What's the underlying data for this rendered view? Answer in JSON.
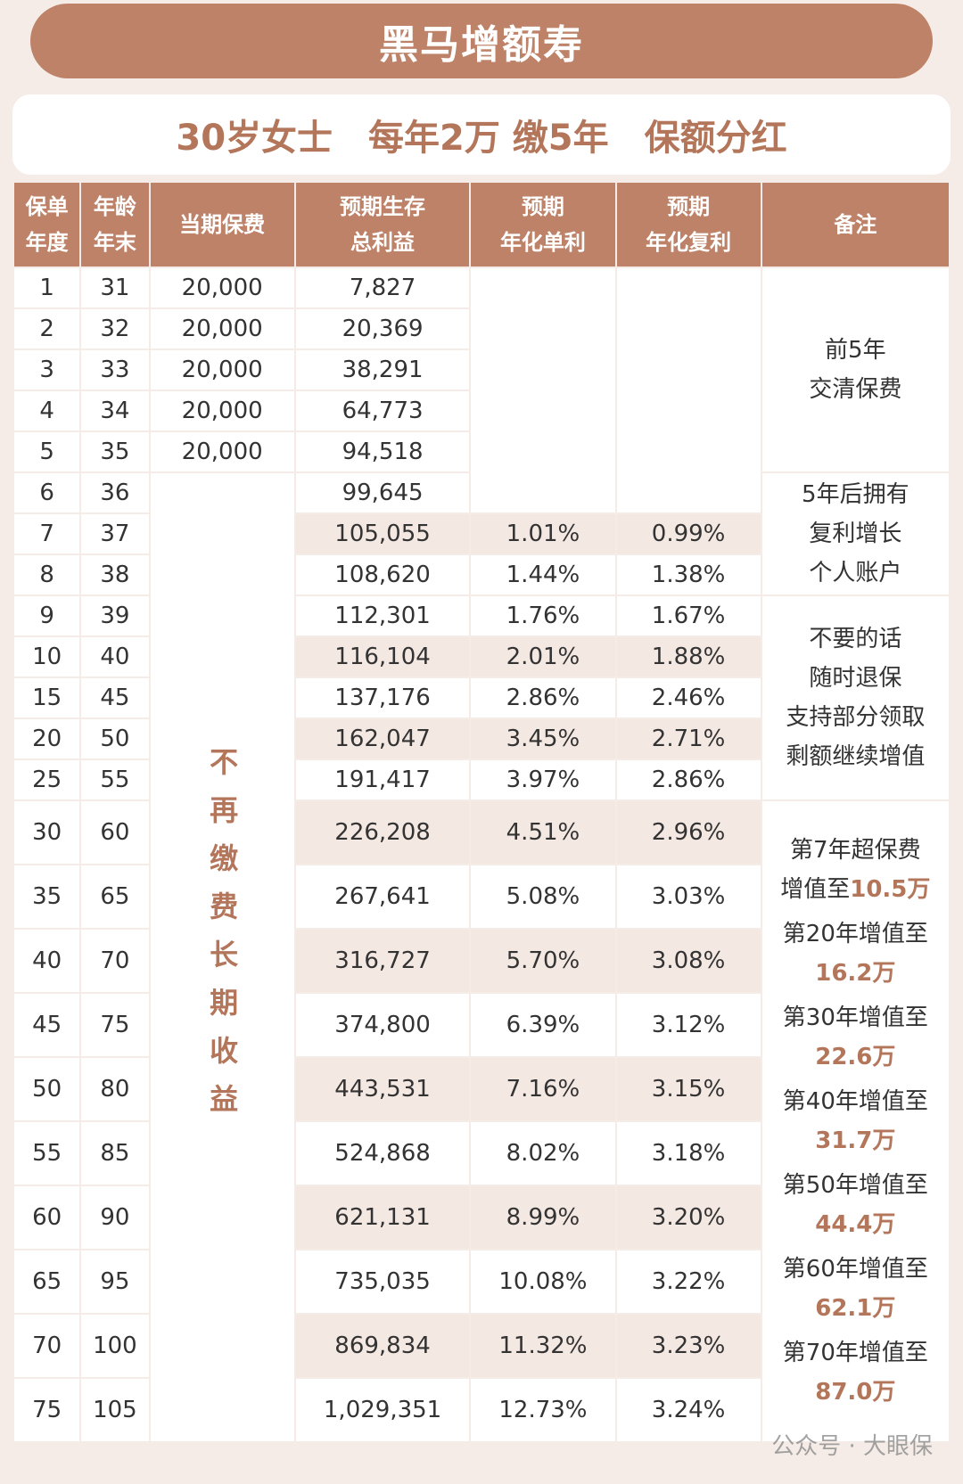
{
  "header": {
    "title": "黑马增额寿",
    "subtitle": "30岁女士　每年2万 缴5年　保额分红"
  },
  "table": {
    "columns": [
      "保单\n年度",
      "年龄\n年末",
      "当期保费",
      "预期生存\n总利益",
      "预期\n年化单利",
      "预期\n年化复利",
      "备注"
    ],
    "rows": [
      {
        "year": "1",
        "age": "31",
        "premium": "20,000",
        "benefit": "7,827"
      },
      {
        "year": "2",
        "age": "32",
        "premium": "20,000",
        "benefit": "20,369"
      },
      {
        "year": "3",
        "age": "33",
        "premium": "20,000",
        "benefit": "38,291"
      },
      {
        "year": "4",
        "age": "34",
        "premium": "20,000",
        "benefit": "64,773"
      },
      {
        "year": "5",
        "age": "35",
        "premium": "20,000",
        "benefit": "94,518"
      },
      {
        "year": "6",
        "age": "36",
        "benefit": "99,645"
      },
      {
        "year": "7",
        "age": "37",
        "benefit": "105,055",
        "simple": "1.01%",
        "compound": "0.99%"
      },
      {
        "year": "8",
        "age": "38",
        "benefit": "108,620",
        "simple": "1.44%",
        "compound": "1.38%"
      },
      {
        "year": "9",
        "age": "39",
        "benefit": "112,301",
        "simple": "1.76%",
        "compound": "1.67%"
      },
      {
        "year": "10",
        "age": "40",
        "benefit": "116,104",
        "simple": "2.01%",
        "compound": "1.88%"
      },
      {
        "year": "15",
        "age": "45",
        "benefit": "137,176",
        "simple": "2.86%",
        "compound": "2.46%"
      },
      {
        "year": "20",
        "age": "50",
        "benefit": "162,047",
        "simple": "3.45%",
        "compound": "2.71%"
      },
      {
        "year": "25",
        "age": "55",
        "benefit": "191,417",
        "simple": "3.97%",
        "compound": "2.86%"
      },
      {
        "year": "30",
        "age": "60",
        "benefit": "226,208",
        "simple": "4.51%",
        "compound": "2.96%"
      },
      {
        "year": "35",
        "age": "65",
        "benefit": "267,641",
        "simple": "5.08%",
        "compound": "3.03%"
      },
      {
        "year": "40",
        "age": "70",
        "benefit": "316,727",
        "simple": "5.70%",
        "compound": "3.08%"
      },
      {
        "year": "45",
        "age": "75",
        "benefit": "374,800",
        "simple": "6.39%",
        "compound": "3.12%"
      },
      {
        "year": "50",
        "age": "80",
        "benefit": "443,531",
        "simple": "7.16%",
        "compound": "3.15%"
      },
      {
        "year": "55",
        "age": "85",
        "benefit": "524,868",
        "simple": "8.02%",
        "compound": "3.18%"
      },
      {
        "year": "60",
        "age": "90",
        "benefit": "621,131",
        "simple": "8.99%",
        "compound": "3.20%"
      },
      {
        "year": "65",
        "age": "95",
        "benefit": "735,035",
        "simple": "10.08%",
        "compound": "3.22%"
      },
      {
        "year": "70",
        "age": "100",
        "benefit": "869,834",
        "simple": "11.32%",
        "compound": "3.23%"
      },
      {
        "year": "75",
        "age": "105",
        "benefit": "1,029,351",
        "simple": "12.73%",
        "compound": "3.24%"
      }
    ],
    "premium_notes": [
      "不再缴费",
      "长期收益"
    ],
    "notes": [
      {
        "lines": [
          "前5年",
          "交清保费"
        ]
      },
      {
        "lines": [
          "5年后拥有",
          "复利增长",
          "个人账户"
        ]
      },
      {
        "lines": [
          "不要的话",
          "随时退保",
          "支持部分领取",
          "剩额继续增值"
        ]
      },
      {
        "items": [
          {
            "text": "第7年超保费\n增值至",
            "amount": "10.5万"
          },
          {
            "text": "第20年增值至",
            "amount": "16.2万"
          },
          {
            "text": "第30年增值至",
            "amount": "22.6万"
          },
          {
            "text": "第40年增值至",
            "amount": "31.7万"
          },
          {
            "text": "第50年增值至",
            "amount": "44.4万"
          },
          {
            "text": "第60年增值至",
            "amount": "62.1万"
          },
          {
            "text": "第70年增值至",
            "amount": "87.0万"
          }
        ]
      }
    ]
  },
  "watermark": "公众号 · 大眼保"
}
